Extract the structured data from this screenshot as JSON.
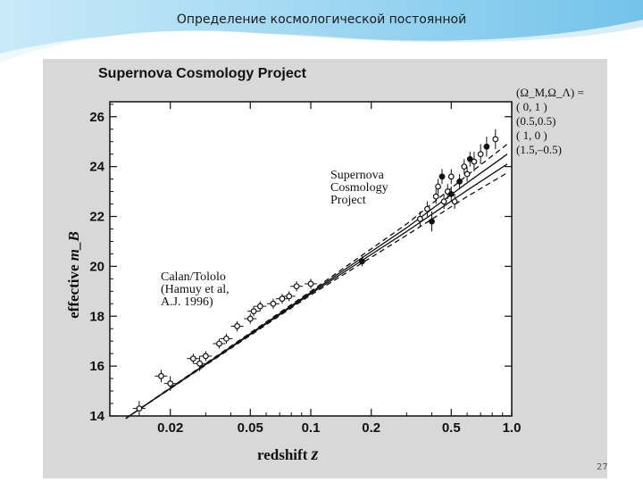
{
  "slide": {
    "title": "Определение космологической постоянной",
    "page_number": "27"
  },
  "colors": {
    "accent_wave": "#5bb8e6",
    "figure_bg": "#d8d8d8",
    "ink": "#111111"
  },
  "chart_data": {
    "type": "scatter",
    "title": "Supernova Cosmology Project",
    "xlabel": "redshift",
    "xlabel_symbol": "z",
    "ylabel": "effective",
    "ylabel_symbol": "m_B",
    "x_scale": "log",
    "xlim": [
      0.01,
      1.0
    ],
    "ylim": [
      14,
      26.6
    ],
    "x_ticks": [
      {
        "value": 0.02,
        "label": "0.02"
      },
      {
        "value": 0.05,
        "label": "0.05"
      },
      {
        "value": 0.1,
        "label": "0.1"
      },
      {
        "value": 0.2,
        "label": "0.2"
      },
      {
        "value": 0.5,
        "label": "0.5"
      },
      {
        "value": 1.0,
        "label": "1.0"
      }
    ],
    "y_ticks": [
      {
        "value": 14,
        "label": "14"
      },
      {
        "value": 16,
        "label": "16"
      },
      {
        "value": 18,
        "label": "18"
      },
      {
        "value": 20,
        "label": "20"
      },
      {
        "value": 22,
        "label": "22"
      },
      {
        "value": 24,
        "label": "24"
      },
      {
        "value": 26,
        "label": "26"
      }
    ],
    "legend_header": "(Ω_M,Ω_Λ) =",
    "legend_entries": [
      "( 0,   1 )",
      "(0.5,0.5)",
      "( 1,   0 )",
      "(1.5,–0.5)"
    ],
    "annotations": [
      {
        "id": "scp",
        "lines": [
          "Supernova",
          "Cosmology",
          "Project"
        ]
      },
      {
        "id": "calan",
        "lines": [
          "Calan/Tololo",
          "(Hamuy et al,",
          "A.J. 1996)"
        ]
      }
    ],
    "series": [
      {
        "group": "Calan/Tololo",
        "points": [
          {
            "z": 0.014,
            "m": 14.3,
            "err": 0.3
          },
          {
            "z": 0.018,
            "m": 15.6,
            "err": 0.25
          },
          {
            "z": 0.02,
            "m": 15.3,
            "err": 0.3
          },
          {
            "z": 0.026,
            "m": 16.3,
            "err": 0.2
          },
          {
            "z": 0.028,
            "m": 16.1,
            "err": 0.3
          },
          {
            "z": 0.03,
            "m": 16.4,
            "err": 0.2
          },
          {
            "z": 0.035,
            "m": 16.9,
            "err": 0.2
          },
          {
            "z": 0.038,
            "m": 17.1,
            "err": 0.2
          },
          {
            "z": 0.043,
            "m": 17.6,
            "err": 0.2
          },
          {
            "z": 0.05,
            "m": 17.9,
            "err": 0.2
          },
          {
            "z": 0.052,
            "m": 18.2,
            "err": 0.2
          },
          {
            "z": 0.056,
            "m": 18.4,
            "err": 0.2
          },
          {
            "z": 0.065,
            "m": 18.5,
            "err": 0.2
          },
          {
            "z": 0.072,
            "m": 18.7,
            "err": 0.2
          },
          {
            "z": 0.078,
            "m": 18.8,
            "err": 0.2
          },
          {
            "z": 0.085,
            "m": 19.2,
            "err": 0.2
          },
          {
            "z": 0.1,
            "m": 19.3,
            "err": 0.2
          }
        ]
      },
      {
        "group": "Supernova Cosmology Project",
        "points": [
          {
            "z": 0.18,
            "m": 20.2,
            "err": 0.2
          },
          {
            "z": 0.35,
            "m": 21.9,
            "err": 0.3
          },
          {
            "z": 0.38,
            "m": 22.3,
            "err": 0.3
          },
          {
            "z": 0.4,
            "m": 21.8,
            "err": 0.4
          },
          {
            "z": 0.42,
            "m": 22.8,
            "err": 0.3
          },
          {
            "z": 0.43,
            "m": 23.2,
            "err": 0.3
          },
          {
            "z": 0.45,
            "m": 23.6,
            "err": 0.3
          },
          {
            "z": 0.46,
            "m": 22.6,
            "err": 0.3
          },
          {
            "z": 0.48,
            "m": 23.0,
            "err": 0.3
          },
          {
            "z": 0.5,
            "m": 22.9,
            "err": 0.3
          },
          {
            "z": 0.5,
            "m": 23.6,
            "err": 0.3
          },
          {
            "z": 0.52,
            "m": 22.6,
            "err": 0.3
          },
          {
            "z": 0.55,
            "m": 23.4,
            "err": 0.3
          },
          {
            "z": 0.58,
            "m": 24.0,
            "err": 0.3
          },
          {
            "z": 0.6,
            "m": 23.7,
            "err": 0.3
          },
          {
            "z": 0.62,
            "m": 24.3,
            "err": 0.3
          },
          {
            "z": 0.65,
            "m": 24.2,
            "err": 0.4
          },
          {
            "z": 0.7,
            "m": 24.5,
            "err": 0.4
          },
          {
            "z": 0.75,
            "m": 24.8,
            "err": 0.4
          },
          {
            "z": 0.83,
            "m": 25.1,
            "err": 0.4
          }
        ]
      }
    ]
  }
}
